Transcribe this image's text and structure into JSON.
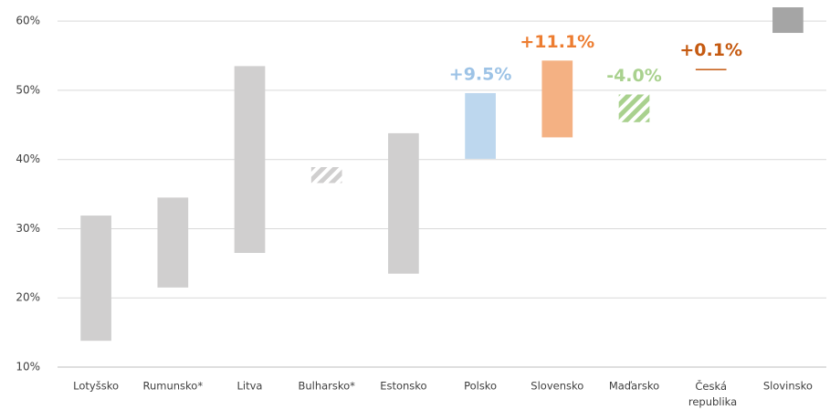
{
  "chart_data": {
    "type": "floating_bar",
    "categories": [
      "Lotyšsko",
      "Rumunsko*",
      "Litva",
      "Bulharsko*",
      "Estonsko",
      "Polsko",
      "Slovensko",
      "Maďarsko",
      "Česká republika",
      "Slovinsko"
    ],
    "low": [
      13.8,
      21.5,
      26.5,
      36.6,
      23.5,
      40.1,
      43.2,
      45.4,
      53.0,
      58.3
    ],
    "high": [
      31.9,
      34.5,
      53.5,
      38.9,
      43.8,
      49.6,
      54.3,
      49.4,
      53.1,
      62.0
    ],
    "colors": [
      "#d0cfcf",
      "#d0cfcf",
      "#d0cfcf",
      "#d0cfcf",
      "#d0cfcf",
      "#bdd7ee",
      "#f4b183",
      "#a9d18e",
      "#c55a11",
      "#a5a5a5"
    ],
    "hatched": [
      false,
      false,
      false,
      true,
      false,
      false,
      false,
      true,
      false,
      false
    ],
    "changes": [
      null,
      null,
      null,
      null,
      null,
      9.5,
      11.1,
      -4.0,
      0.1,
      null
    ],
    "value_labels": [
      null,
      null,
      null,
      null,
      null,
      "+9.5%",
      "+11.1%",
      "-4.0%",
      "+0.1%",
      null
    ],
    "label_colors": [
      null,
      null,
      null,
      null,
      null,
      "#9dc3e6",
      "#ed7d31",
      "#a9d18e",
      "#c55a11",
      null
    ],
    "ylim": [
      10,
      62
    ],
    "yticks": [
      {
        "value": 10,
        "label": "10%"
      },
      {
        "value": 20,
        "label": "20%"
      },
      {
        "value": 30,
        "label": "30%"
      },
      {
        "value": 40,
        "label": "40%"
      },
      {
        "value": 50,
        "label": "50%"
      },
      {
        "value": 60,
        "label": "60%"
      }
    ],
    "grid": true
  }
}
